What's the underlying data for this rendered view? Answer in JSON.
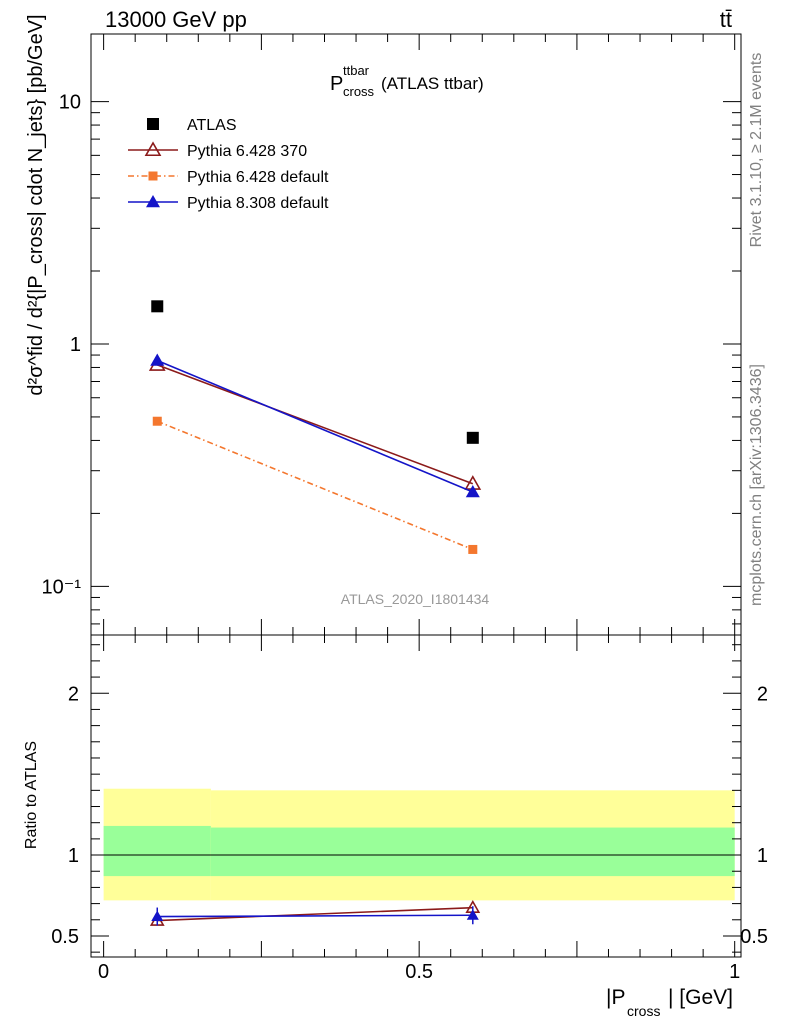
{
  "header": {
    "energy_label": "13000 GeV pp",
    "process_label": "tt̄"
  },
  "side": {
    "rivet_label": "Rivet 3.1.10, ≥ 2.1M events",
    "mcplots_label": "mcplots.cern.ch [arXiv:1306.3436]"
  },
  "main": {
    "title_main": "P",
    "title_sup": "ttbar",
    "title_sub": "cross",
    "title_rest": " (ATLAS ttbar)",
    "watermark": "ATLAS_2020_I1801434",
    "ylabel": "d²σ^fid / d²{|P_cross| cdot N_jets} [pb/GeV]"
  },
  "ratio": {
    "ylabel": "Ratio to ATLAS"
  },
  "xaxis": {
    "label_pre": "|P",
    "label_sub": "cross",
    "label_post": "| [GeV]"
  },
  "colors": {
    "atlas": "#000000",
    "py6_370": "#8b1a1a",
    "py6_default": "#f4772e",
    "py8_default": "#1414c8",
    "band_outer": "#ffff99",
    "band_inner": "#99ff99"
  },
  "chart_data": [
    {
      "type": "scatter",
      "yscale": "log",
      "xlim": [
        -0.02,
        1.01
      ],
      "ylim": [
        0.063,
        19
      ],
      "y_tick_labels": [
        "10⁻¹",
        "1",
        "10"
      ],
      "series": [
        {
          "name": "ATLAS",
          "marker": "square",
          "x": [
            0.085,
            0.585
          ],
          "y": [
            1.43,
            0.41
          ]
        },
        {
          "name": "Pythia 6.428 370",
          "marker": "open-triangle",
          "x": [
            0.085,
            0.585
          ],
          "y": [
            0.82,
            0.265
          ]
        },
        {
          "name": "Pythia 6.428 default",
          "marker": "small-square",
          "style": "dash-dot",
          "x": [
            0.085,
            0.585
          ],
          "y": [
            0.48,
            0.142
          ]
        },
        {
          "name": "Pythia 8.308 default",
          "marker": "triangle",
          "x": [
            0.085,
            0.585
          ],
          "y": [
            0.855,
            0.245
          ]
        }
      ],
      "legend": "top-left"
    },
    {
      "type": "line",
      "xlim": [
        -0.02,
        1.01
      ],
      "ylim": [
        0.37,
        2.36
      ],
      "xlabel": "|P_cross| [GeV]",
      "ylabel": "Ratio to ATLAS",
      "x_tick_labels": [
        "0",
        "0.5",
        "1"
      ],
      "y_tick_labels": [
        "0.5",
        "1",
        "2"
      ],
      "reference_line": 1,
      "bands": [
        {
          "x": [
            0,
            0.17
          ],
          "outer": [
            0.72,
            1.41
          ],
          "inner": [
            0.87,
            1.18
          ]
        },
        {
          "x": [
            0.17,
            1.0
          ],
          "outer": [
            0.72,
            1.4
          ],
          "inner": [
            0.87,
            1.17
          ]
        }
      ],
      "series": [
        {
          "name": "Pythia 6.428 370",
          "x": [
            0.085,
            0.585
          ],
          "y": [
            0.595,
            0.675
          ]
        },
        {
          "name": "Pythia 8.308 default",
          "x": [
            0.085,
            0.585
          ],
          "y": [
            0.62,
            0.628
          ]
        }
      ]
    }
  ]
}
